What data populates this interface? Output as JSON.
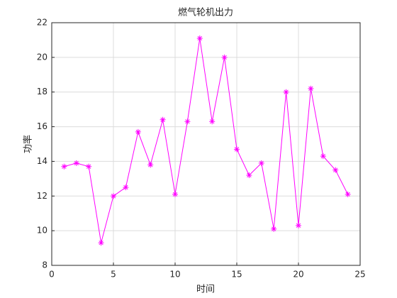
{
  "chart_data": {
    "type": "line",
    "title": "燃气轮机出力",
    "xlabel": "时间",
    "ylabel": "功率",
    "x": [
      1,
      2,
      3,
      4,
      5,
      6,
      7,
      8,
      9,
      10,
      11,
      12,
      13,
      14,
      15,
      16,
      17,
      18,
      19,
      20,
      21,
      22,
      23,
      24
    ],
    "series": [
      {
        "color": "#ff00ff",
        "marker": "*",
        "values": [
          13.7,
          13.9,
          13.7,
          9.3,
          12.0,
          12.5,
          15.7,
          13.8,
          16.4,
          12.1,
          16.3,
          21.1,
          16.3,
          20.0,
          14.7,
          13.2,
          13.9,
          10.1,
          18.0,
          10.3,
          18.2,
          14.3,
          13.5,
          12.1
        ]
      }
    ],
    "xlim": [
      0,
      25
    ],
    "xticks": [
      0,
      5,
      10,
      15,
      20,
      25
    ],
    "ylim": [
      8,
      22
    ],
    "yticks": [
      8,
      10,
      12,
      14,
      16,
      18,
      20,
      22
    ],
    "grid": true
  }
}
